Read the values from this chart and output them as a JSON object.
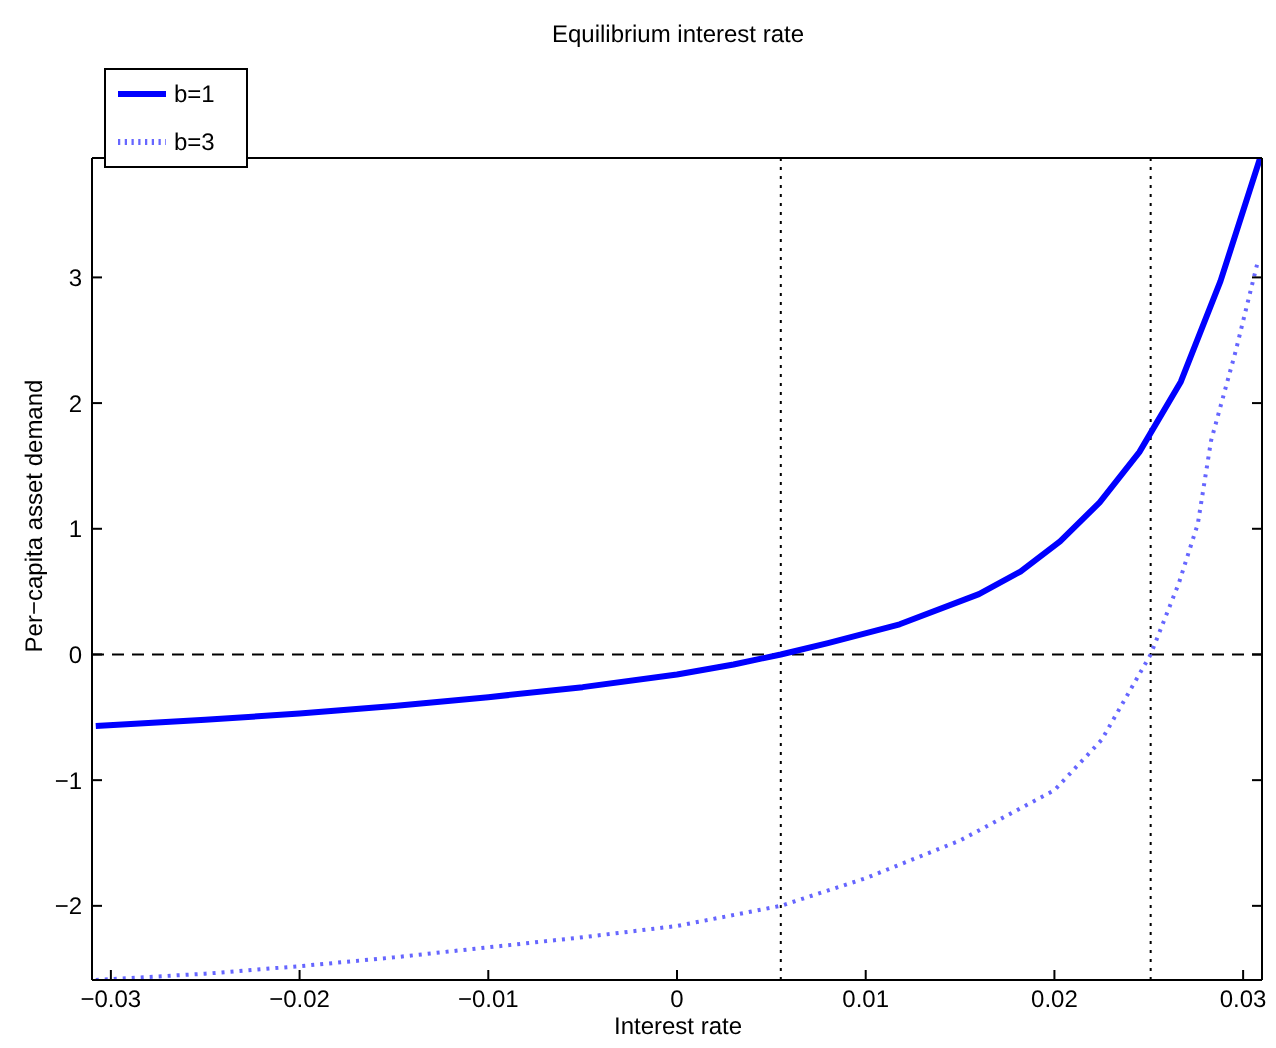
{
  "chart_data": {
    "type": "line",
    "title": "Equilibrium interest rate",
    "xlabel": "Interest rate",
    "ylabel": "Per−capita asset demand",
    "xlim": [
      -0.031,
      0.031
    ],
    "ylim": [
      -2.59,
      3.95
    ],
    "xticks": [
      {
        "value": -0.03,
        "label": "−0.03"
      },
      {
        "value": -0.02,
        "label": "−0.02"
      },
      {
        "value": -0.01,
        "label": "−0.01"
      },
      0,
      0.01,
      0.02,
      0.03
    ],
    "yticks": [
      {
        "value": -2,
        "label": "−2"
      },
      {
        "value": -1,
        "label": "−1"
      },
      0,
      1,
      2,
      3
    ],
    "grid": false,
    "legend": "top left",
    "ref_lines": [
      {
        "axis": "y",
        "value": 0,
        "color": "#000000",
        "line_style": "dashed"
      },
      {
        "axis": "x",
        "value": 0.0055,
        "color": "#000000",
        "line_style": "dotted"
      },
      {
        "axis": "x",
        "value": 0.0251,
        "color": "#000000",
        "line_style": "dotted"
      }
    ],
    "series": [
      {
        "name": "b=1",
        "color": "#0000ff",
        "line_style": "solid",
        "x": [
          -0.0308,
          -0.025,
          -0.02,
          -0.015,
          -0.01,
          -0.005,
          0,
          0.003,
          0.0055,
          0.008,
          0.0118,
          0.016,
          0.0182,
          0.0203,
          0.0224,
          0.0245,
          0.0267,
          0.0288,
          0.0309
        ],
        "values": [
          -0.57,
          -0.52,
          -0.47,
          -0.41,
          -0.34,
          -0.26,
          -0.16,
          -0.08,
          0,
          0.09,
          0.24,
          0.48,
          0.66,
          0.9,
          1.21,
          1.61,
          2.17,
          2.97,
          3.95
        ]
      },
      {
        "name": "b=3",
        "color": "#6666ff",
        "line_style": "dotted",
        "x": [
          -0.0308,
          -0.025,
          -0.02,
          -0.015,
          -0.01,
          -0.005,
          0,
          0.0055,
          0.01,
          0.015,
          0.02,
          0.0225,
          0.0251,
          0.0266,
          0.0276,
          0.0283,
          0.0296,
          0.0308
        ],
        "values": [
          -2.59,
          -2.54,
          -2.48,
          -2.41,
          -2.33,
          -2.25,
          -2.16,
          -2.0,
          -1.78,
          -1.48,
          -1.08,
          -0.68,
          0,
          0.57,
          1.04,
          1.7,
          2.41,
          3.14
        ]
      }
    ]
  }
}
